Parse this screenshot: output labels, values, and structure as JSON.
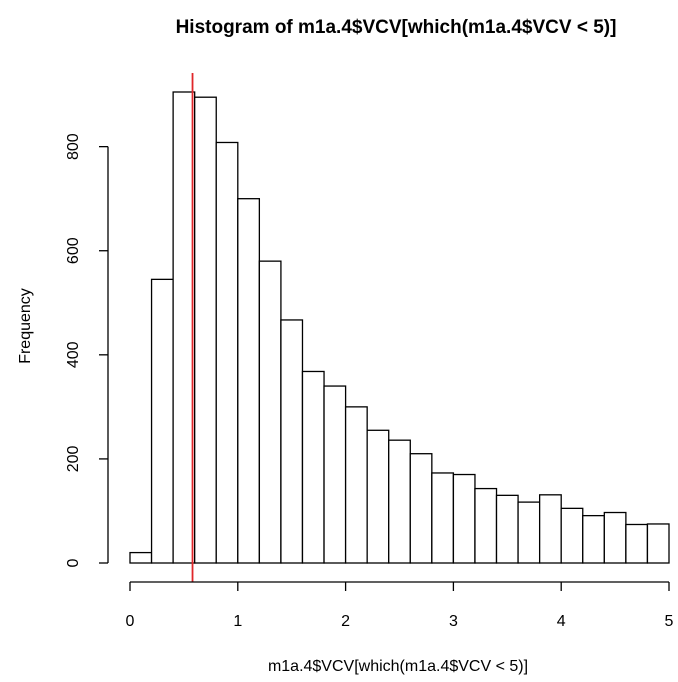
{
  "chart_data": {
    "type": "bar",
    "title": "Histogram of m1a.4$VCV[which(m1a.4$VCV < 5)]",
    "xlabel": "m1a.4$VCV[which(m1a.4$VCV < 5)]",
    "ylabel": "Frequency",
    "bin_width": 0.2,
    "bins": [
      {
        "x0": 0.0,
        "x1": 0.2,
        "count": 20
      },
      {
        "x0": 0.2,
        "x1": 0.4,
        "count": 545
      },
      {
        "x0": 0.4,
        "x1": 0.6,
        "count": 905
      },
      {
        "x0": 0.6,
        "x1": 0.8,
        "count": 895
      },
      {
        "x0": 0.8,
        "x1": 1.0,
        "count": 808
      },
      {
        "x0": 1.0,
        "x1": 1.2,
        "count": 700
      },
      {
        "x0": 1.2,
        "x1": 1.4,
        "count": 580
      },
      {
        "x0": 1.4,
        "x1": 1.6,
        "count": 467
      },
      {
        "x0": 1.6,
        "x1": 1.8,
        "count": 368
      },
      {
        "x0": 1.8,
        "x1": 2.0,
        "count": 340
      },
      {
        "x0": 2.0,
        "x1": 2.2,
        "count": 300
      },
      {
        "x0": 2.2,
        "x1": 2.4,
        "count": 255
      },
      {
        "x0": 2.4,
        "x1": 2.6,
        "count": 236
      },
      {
        "x0": 2.6,
        "x1": 2.8,
        "count": 210
      },
      {
        "x0": 2.8,
        "x1": 3.0,
        "count": 173
      },
      {
        "x0": 3.0,
        "x1": 3.2,
        "count": 170
      },
      {
        "x0": 3.2,
        "x1": 3.4,
        "count": 143
      },
      {
        "x0": 3.4,
        "x1": 3.6,
        "count": 130
      },
      {
        "x0": 3.6,
        "x1": 3.8,
        "count": 117
      },
      {
        "x0": 3.8,
        "x1": 4.0,
        "count": 131
      },
      {
        "x0": 4.0,
        "x1": 4.2,
        "count": 105
      },
      {
        "x0": 4.2,
        "x1": 4.4,
        "count": 91
      },
      {
        "x0": 4.4,
        "x1": 4.6,
        "count": 97
      },
      {
        "x0": 4.6,
        "x1": 4.8,
        "count": 74
      },
      {
        "x0": 4.8,
        "x1": 5.0,
        "count": 75
      }
    ],
    "xticks": [
      0,
      1,
      2,
      3,
      4,
      5
    ],
    "yticks": [
      0,
      200,
      400,
      600,
      800
    ],
    "xlim": [
      0,
      5
    ],
    "ylim": [
      0,
      905
    ],
    "reference_line": {
      "x": 0.58,
      "color": "#e0262a"
    },
    "bar_fill": "#ffffff",
    "bar_stroke": "#000000",
    "grid": false,
    "legend": "none"
  }
}
